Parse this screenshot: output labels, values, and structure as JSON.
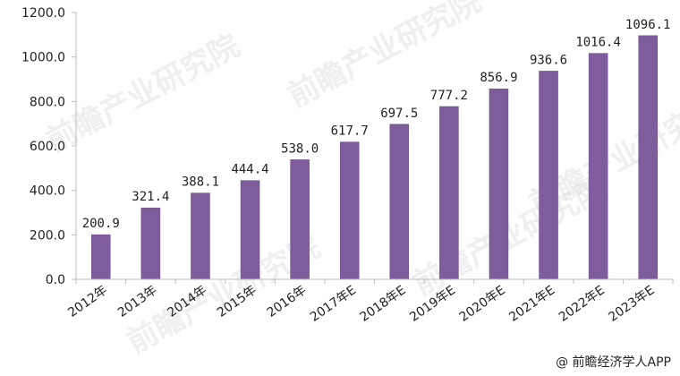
{
  "chart_data": {
    "type": "bar",
    "categories": [
      "2012年",
      "2013年",
      "2014年",
      "2015年",
      "2016年",
      "2017年E",
      "2018年E",
      "2019年E",
      "2020年E",
      "2021年E",
      "2022年E",
      "2023年E"
    ],
    "values": [
      200.9,
      321.4,
      388.1,
      444.4,
      538.0,
      617.7,
      697.5,
      777.2,
      856.9,
      936.6,
      1016.4,
      1096.1
    ],
    "value_labels": [
      "200.9",
      "321.4",
      "388.1",
      "444.4",
      "538.0",
      "617.7",
      "697.5",
      "777.2",
      "856.9",
      "936.6",
      "1016.4",
      "1096.1"
    ],
    "y_ticks": [
      "0.0",
      "200.0",
      "400.0",
      "600.0",
      "800.0",
      "1000.0",
      "1200.0"
    ],
    "ylim": [
      0,
      1200
    ],
    "title": "",
    "xlabel": "",
    "ylabel": "",
    "grid": false,
    "colors": {
      "bar": "#7f5c9c",
      "bar_edge": "#6a4a87",
      "axis": "#bdbdbd",
      "text": "#222222"
    }
  },
  "watermark_text": "前瞻产业研究院",
  "credit": "@ 前瞻经济学人APP"
}
